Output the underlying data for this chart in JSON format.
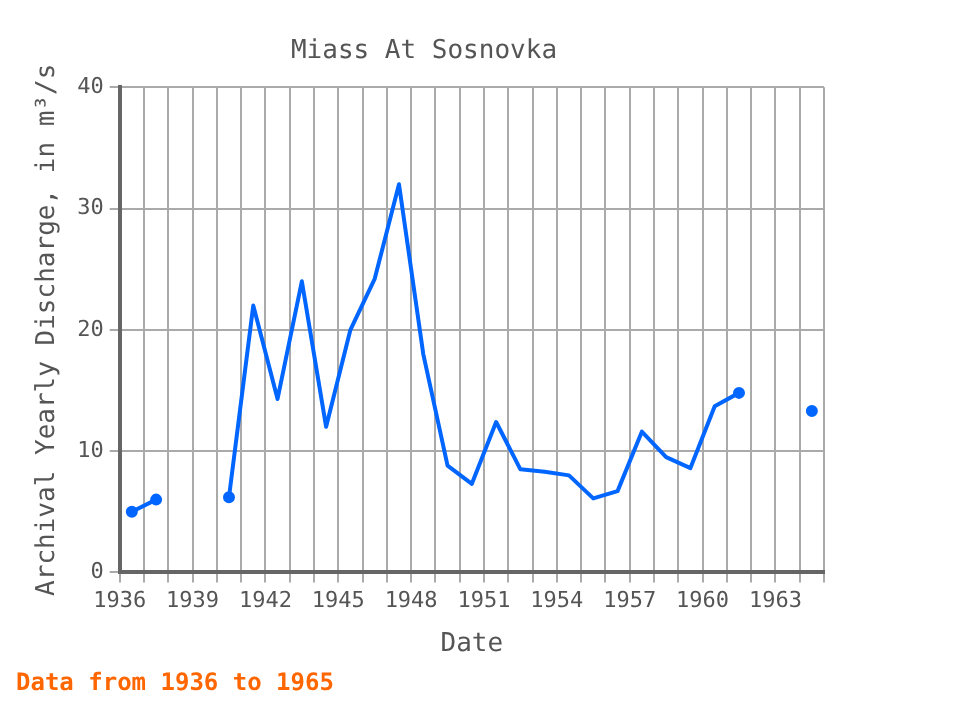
{
  "chart_data": {
    "type": "line",
    "title": "Miass At Sosnovka",
    "xlabel": "Date",
    "ylabel": "Archival Yearly Discharge, in m³/s",
    "annotations": [
      "Data from 1936 to 1965"
    ],
    "x": [
      1936.5,
      1937.5,
      1938.5,
      1939.5,
      1940.5,
      1941.5,
      1942.5,
      1943.5,
      1944.5,
      1945.5,
      1946.5,
      1947.5,
      1948.5,
      1949.5,
      1950.5,
      1951.5,
      1952.5,
      1953.5,
      1954.5,
      1955.5,
      1956.5,
      1957.5,
      1958.5,
      1959.5,
      1960.5,
      1961.5,
      1962.5,
      1963.5,
      1964.5
    ],
    "series": [
      {
        "color": "#0066ff",
        "values": [
          5.0,
          6.0,
          null,
          null,
          6.2,
          22.0,
          14.3,
          24.0,
          12.0,
          20.0,
          24.2,
          32.0,
          18.0,
          8.8,
          7.3,
          12.4,
          8.5,
          8.3,
          8.0,
          6.1,
          6.7,
          11.6,
          9.5,
          8.6,
          13.7,
          14.8,
          null,
          null,
          13.3
        ]
      }
    ],
    "xlim": [
      1936,
      1965
    ],
    "xticks": [
      1936,
      {
        "value": 1937,
        "label": null
      },
      {
        "value": 1938,
        "label": null
      },
      1939,
      {
        "value": 1940,
        "label": null
      },
      {
        "value": 1941,
        "label": null
      },
      1942,
      {
        "value": 1943,
        "label": null
      },
      {
        "value": 1944,
        "label": null
      },
      1945,
      {
        "value": 1946,
        "label": null
      },
      {
        "value": 1947,
        "label": null
      },
      1948,
      {
        "value": 1949,
        "label": null
      },
      {
        "value": 1950,
        "label": null
      },
      1951,
      {
        "value": 1952,
        "label": null
      },
      {
        "value": 1953,
        "label": null
      },
      1954,
      {
        "value": 1955,
        "label": null
      },
      {
        "value": 1956,
        "label": null
      },
      1957,
      {
        "value": 1958,
        "label": null
      },
      {
        "value": 1959,
        "label": null
      },
      1960,
      {
        "value": 1961,
        "label": null
      },
      {
        "value": 1962,
        "label": null
      },
      1963,
      {
        "value": 1964,
        "label": null
      },
      {
        "value": 1965,
        "label": null
      }
    ],
    "ylim": [
      0,
      40
    ],
    "yticks": [
      0,
      10,
      20,
      30,
      40
    ],
    "grid": true,
    "legend": false,
    "marker": "none",
    "line_style": "solid"
  }
}
